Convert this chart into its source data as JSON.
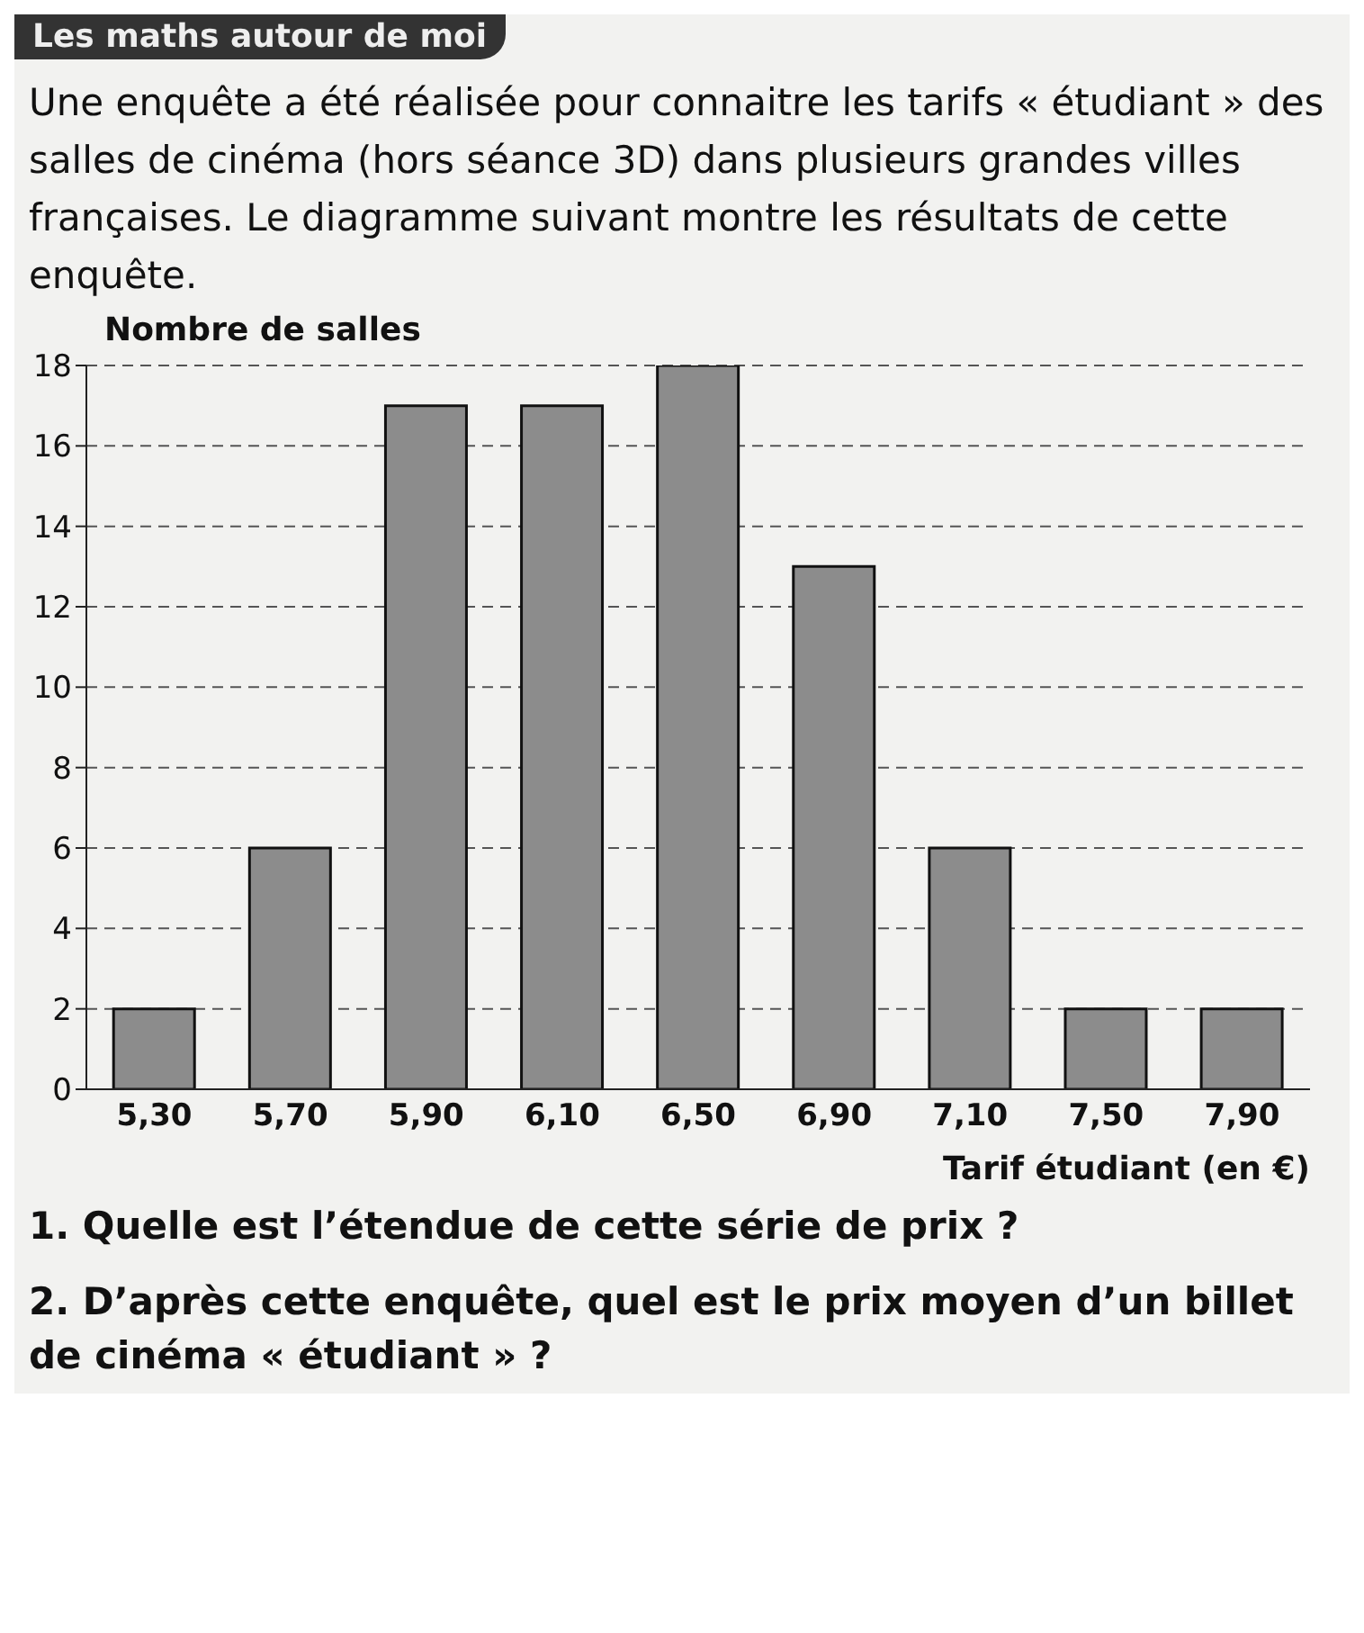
{
  "chart_data": {
    "type": "bar",
    "title": "Les maths autour de moi",
    "subtitle": "Une enquête a été réalisée pour connaitre les tarifs « étudiant » des salles de cinéma (hors séance 3D) dans plusieurs grandes villes françaises. Le diagramme suivant montre les résultats de cette enquête.",
    "ylabel": "Nombre de salles",
    "xlabel": "Tarif étudiant (en €)",
    "categories": [
      "5,30",
      "5,70",
      "5,90",
      "6,10",
      "6,50",
      "6,90",
      "7,10",
      "7,50",
      "7,90"
    ],
    "values": [
      2,
      6,
      17,
      17,
      18,
      13,
      6,
      2,
      2
    ],
    "color": "#8c8c8c",
    "ylim": [
      0,
      18
    ],
    "yticks": [
      0,
      2,
      4,
      6,
      8,
      10,
      12,
      14,
      16,
      18
    ],
    "grid": "y",
    "annotations": [
      "1. Quelle est l’étendue de cette série de prix ?",
      "2. D’après cette enquête, quel est le prix moyen d’un billet de cinéma « étudiant » ?"
    ]
  }
}
